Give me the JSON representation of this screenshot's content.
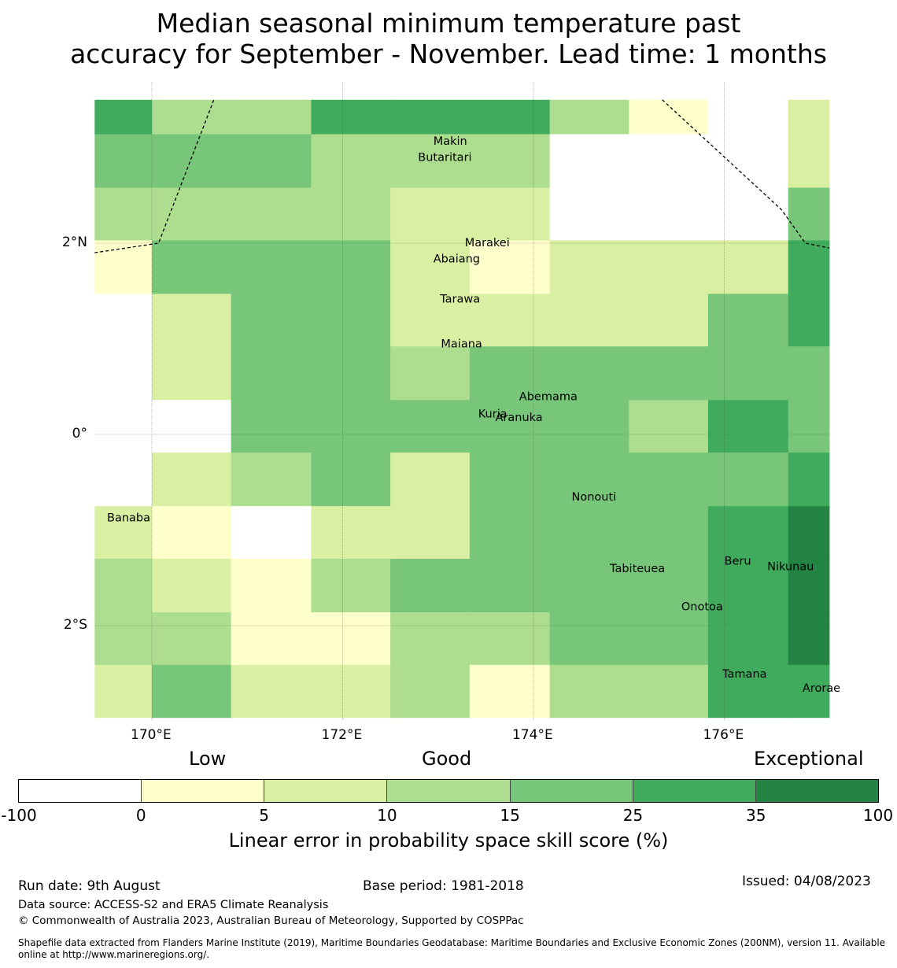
{
  "title": {
    "line1": "Median seasonal minimum temperature past",
    "line2": "accuracy for September - November. Lead time: 1 months"
  },
  "map": {
    "lon_range": [
      169.4,
      177.1
    ],
    "lat_range": [
      -2.9,
      3.5
    ],
    "x_ticks": [
      {
        "value": 170,
        "label": "170°E"
      },
      {
        "value": 172,
        "label": "172°E"
      },
      {
        "value": 174,
        "label": "174°E"
      },
      {
        "value": 176,
        "label": "176°E"
      }
    ],
    "y_ticks": [
      {
        "value": 2,
        "label": "2°N"
      },
      {
        "value": 0,
        "label": "0°"
      },
      {
        "value": -2,
        "label": "2°S"
      }
    ],
    "grid_lon_edges": [
      169.4,
      170.0,
      170.83,
      171.67,
      172.5,
      173.33,
      174.17,
      175.0,
      175.83,
      176.67,
      177.1
    ],
    "grid_lat_edges": [
      3.5,
      3.14,
      2.58,
      2.03,
      1.47,
      0.92,
      0.36,
      -0.19,
      -0.75,
      -1.3,
      -1.86,
      -2.41,
      -2.96
    ],
    "grid_lat_bottom": -2.9,
    "category_grid": [
      [
        5,
        3,
        3,
        5,
        5,
        5,
        3,
        1,
        0,
        2
      ],
      [
        4,
        4,
        4,
        3,
        3,
        3,
        0,
        0,
        0,
        2
      ],
      [
        3,
        3,
        3,
        3,
        2,
        2,
        0,
        0,
        0,
        4
      ],
      [
        1,
        4,
        4,
        4,
        2,
        1,
        2,
        2,
        2,
        5
      ],
      [
        0,
        2,
        4,
        4,
        2,
        2,
        2,
        2,
        4,
        5
      ],
      [
        0,
        2,
        4,
        4,
        3,
        4,
        4,
        4,
        4,
        4
      ],
      [
        0,
        0,
        4,
        4,
        4,
        4,
        4,
        3,
        5,
        4
      ],
      [
        0,
        2,
        3,
        4,
        2,
        4,
        4,
        4,
        4,
        5
      ],
      [
        2,
        1,
        0,
        2,
        2,
        4,
        4,
        4,
        5,
        6
      ],
      [
        3,
        2,
        1,
        3,
        4,
        4,
        4,
        4,
        5,
        6
      ],
      [
        3,
        3,
        1,
        1,
        3,
        3,
        4,
        4,
        5,
        6
      ],
      [
        2,
        4,
        2,
        2,
        3,
        1,
        3,
        3,
        5,
        5
      ],
      [
        3,
        2,
        1,
        2,
        2,
        2,
        1,
        1,
        4,
        4
      ]
    ],
    "boundary_lines": [
      [
        [
          169.4,
          1.9
        ],
        [
          170.07,
          2.0
        ],
        [
          170.65,
          3.5
        ]
      ],
      [
        [
          175.35,
          3.5
        ],
        [
          176.6,
          2.35
        ],
        [
          176.85,
          2.0
        ],
        [
          177.1,
          1.95
        ]
      ]
    ],
    "islands": [
      {
        "name": "Makin",
        "lon": 172.95,
        "lat": 3.07
      },
      {
        "name": "Butaritari",
        "lon": 172.79,
        "lat": 2.9
      },
      {
        "name": "Marakei",
        "lon": 173.28,
        "lat": 2.01
      },
      {
        "name": "Abaiang",
        "lon": 172.95,
        "lat": 1.84
      },
      {
        "name": "Tarawa",
        "lon": 173.02,
        "lat": 1.42
      },
      {
        "name": "Maiana",
        "lon": 173.03,
        "lat": 0.95
      },
      {
        "name": "Abemama",
        "lon": 173.85,
        "lat": 0.4
      },
      {
        "name": "Kuria",
        "lon": 173.42,
        "lat": 0.22
      },
      {
        "name": "Aranuka",
        "lon": 173.6,
        "lat": 0.18
      },
      {
        "name": "Nonouti",
        "lon": 174.4,
        "lat": -0.65
      },
      {
        "name": "Banaba",
        "lon": 169.53,
        "lat": -0.87
      },
      {
        "name": "Tabiteuea",
        "lon": 174.8,
        "lat": -1.4
      },
      {
        "name": "Beru",
        "lon": 176.0,
        "lat": -1.32
      },
      {
        "name": "Nikunau",
        "lon": 176.45,
        "lat": -1.38
      },
      {
        "name": "Onotoa",
        "lon": 175.55,
        "lat": -1.8
      },
      {
        "name": "Tamana",
        "lon": 175.98,
        "lat": -2.5
      },
      {
        "name": "Arorae",
        "lon": 176.82,
        "lat": -2.65
      }
    ]
  },
  "colorbar": {
    "categories_above": {
      "low": "Low",
      "good": "Good",
      "exceptional": "Exceptional"
    },
    "colors": [
      "#ffffff",
      "#ffffcc",
      "#d9f0a3",
      "#addd8e",
      "#78c679",
      "#41ab5d",
      "#238443"
    ],
    "ticks": [
      "-100",
      "0",
      "5",
      "10",
      "15",
      "25",
      "35",
      "100"
    ],
    "title": "Linear error in probability space skill score (%)"
  },
  "footer": {
    "run_date": "Run date: 9th August",
    "base_period": "Base period: 1981-2018",
    "issued": "Issued: 04/08/2023",
    "data_source": "Data source: ACCESS-S2 and ERA5 Climate Reanalysis",
    "copyright": "© Commonwealth of Australia 2023, Australian Bureau of Meteorology, Supported by COSPPac",
    "shapefile_line1": "Shapefile data extracted from Flanders Marine Institute (2019), Maritime Boundaries Geodatabase: Maritime Boundaries and Exclusive Economic Zones (200NM), version 11. Available",
    "shapefile_line2": "online at http://www.marineregions.org/."
  }
}
